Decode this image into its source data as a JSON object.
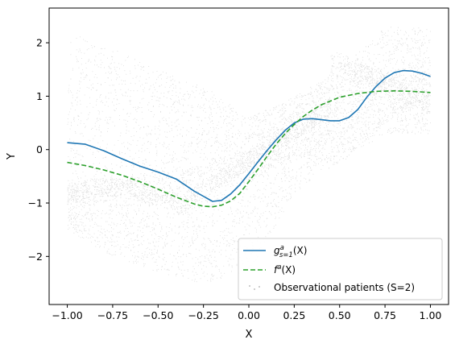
{
  "chart_data": {
    "type": "line",
    "xlabel": "X",
    "ylabel": "Y",
    "xlim": [
      -1.1,
      1.1
    ],
    "ylim": [
      -2.9,
      2.65
    ],
    "grid": false,
    "legend_position": "lower-right",
    "x_ticks": [
      -1.0,
      -0.75,
      -0.5,
      -0.25,
      0.0,
      0.25,
      0.5,
      0.75,
      1.0
    ],
    "x_tick_labels": [
      "−1.00",
      "−0.75",
      "−0.50",
      "−0.25",
      "0.00",
      "0.25",
      "0.50",
      "0.75",
      "1.00"
    ],
    "y_ticks": [
      -2,
      -1,
      0,
      1,
      2
    ],
    "y_tick_labels": [
      "−2",
      "−1",
      "0",
      "1",
      "2"
    ],
    "series": [
      {
        "name": "g^a_{s=1}(X)",
        "legend": {
          "base": "g",
          "sup": "a",
          "sub": "s=1",
          "arg": "(X)"
        },
        "color": "#1f77b4",
        "style": "solid",
        "x": [
          -1.0,
          -0.9,
          -0.8,
          -0.7,
          -0.6,
          -0.5,
          -0.4,
          -0.3,
          -0.2,
          -0.15,
          -0.1,
          -0.05,
          0.0,
          0.05,
          0.1,
          0.15,
          0.2,
          0.25,
          0.3,
          0.35,
          0.4,
          0.45,
          0.5,
          0.55,
          0.6,
          0.65,
          0.7,
          0.75,
          0.8,
          0.85,
          0.9,
          0.95,
          1.0
        ],
        "y": [
          0.13,
          0.1,
          -0.02,
          -0.17,
          -0.31,
          -0.42,
          -0.55,
          -0.78,
          -0.97,
          -0.95,
          -0.83,
          -0.66,
          -0.45,
          -0.23,
          -0.02,
          0.18,
          0.36,
          0.5,
          0.57,
          0.58,
          0.56,
          0.54,
          0.54,
          0.6,
          0.75,
          0.98,
          1.18,
          1.34,
          1.44,
          1.48,
          1.47,
          1.43,
          1.37
        ]
      },
      {
        "name": "f^a(X)",
        "legend": {
          "base": "f",
          "sup": "a",
          "sub": "",
          "arg": "(X)"
        },
        "color": "#2ca02c",
        "style": "dashed",
        "x": [
          -1.0,
          -0.9,
          -0.8,
          -0.7,
          -0.6,
          -0.5,
          -0.4,
          -0.3,
          -0.25,
          -0.2,
          -0.15,
          -0.1,
          -0.05,
          0.0,
          0.05,
          0.1,
          0.15,
          0.2,
          0.25,
          0.3,
          0.35,
          0.4,
          0.5,
          0.6,
          0.7,
          0.8,
          0.9,
          1.0
        ],
        "y": [
          -0.24,
          -0.3,
          -0.38,
          -0.48,
          -0.6,
          -0.74,
          -0.89,
          -1.02,
          -1.06,
          -1.07,
          -1.04,
          -0.96,
          -0.82,
          -0.6,
          -0.37,
          -0.13,
          0.1,
          0.3,
          0.47,
          0.62,
          0.74,
          0.84,
          0.98,
          1.05,
          1.09,
          1.1,
          1.09,
          1.07
        ]
      }
    ],
    "scatter": {
      "name": "Observational patients (S=2)",
      "color": "#808080",
      "note_on_values": "dense cloud of grey points; approximate density bands",
      "bands": [
        {
          "x_range": [
            -1.0,
            1.0
          ],
          "y_center_at_x_start": -0.4,
          "description": "wide upper cloud",
          "y_lo": [
            -1.0,
            -0.95,
            -0.9,
            -0.5,
            -0.6,
            -0.1,
            -0.3,
            0.5,
            1.0
          ],
          "y_hi": [
            2.2,
            1.9,
            1.5,
            1.2,
            0.6,
            1.0,
            1.5,
            2.3,
            2.3
          ]
        },
        {
          "x_range": [
            -1.0,
            1.0
          ],
          "description": "wide lower cloud",
          "y_lo": [
            -1.5,
            -2.0,
            -2.3,
            -2.5,
            -2.3,
            -0.8,
            -0.2,
            0.3,
            0.3
          ],
          "y_hi": [
            -0.7,
            -0.6,
            -0.4,
            -0.3,
            0.0,
            0.8,
            1.7,
            1.5,
            1.6
          ]
        }
      ]
    }
  }
}
